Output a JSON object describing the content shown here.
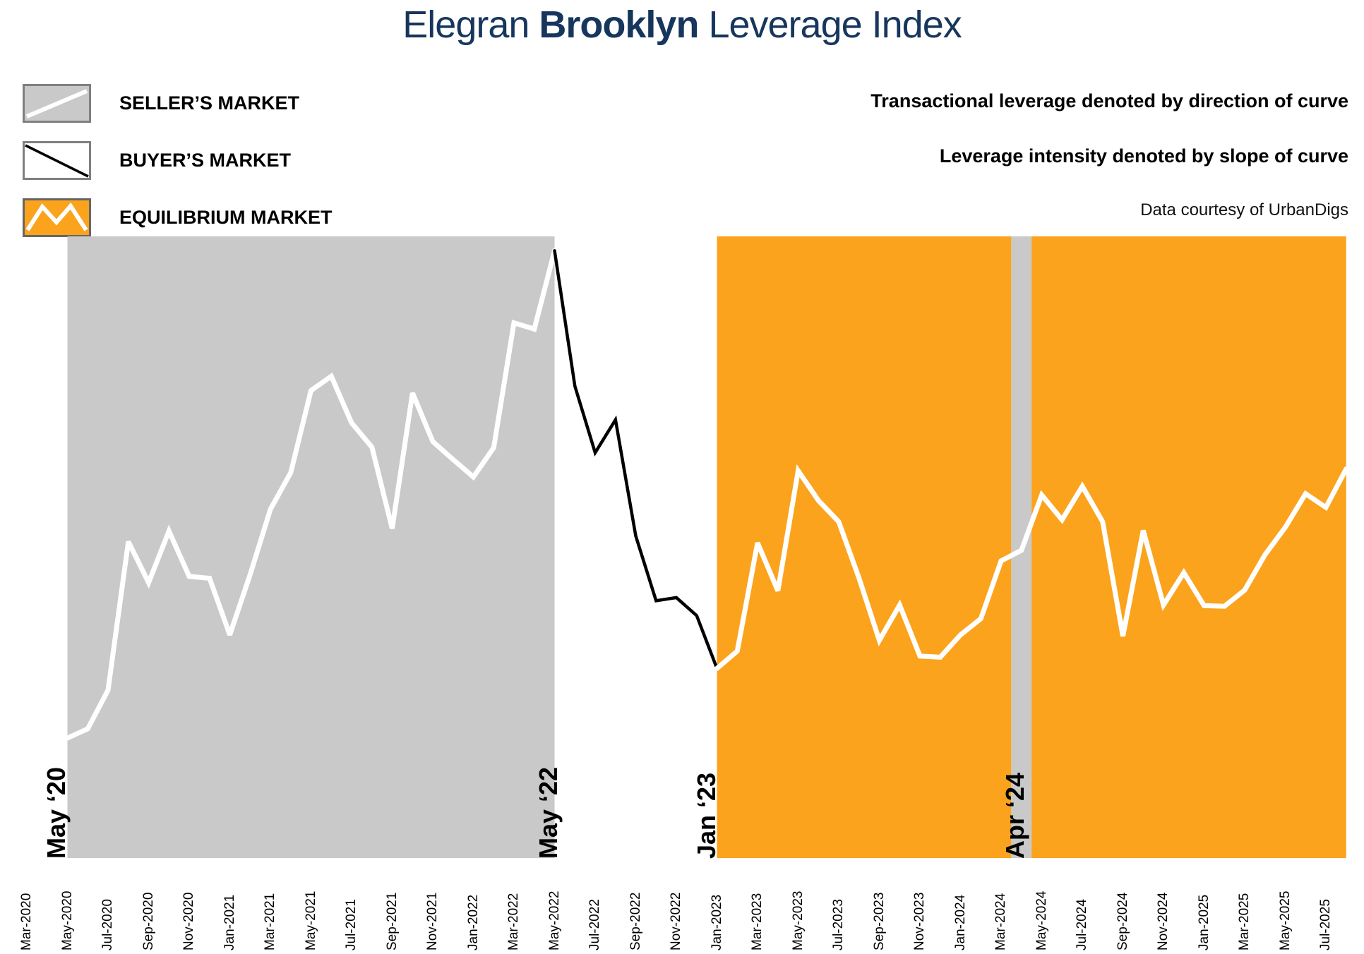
{
  "title": {
    "prefix": "Elegran ",
    "bold": "Brooklyn",
    "suffix": " Leverage Index"
  },
  "legend": {
    "items": [
      {
        "id": "sellers",
        "label": "SELLER’S MARKET"
      },
      {
        "id": "buyers",
        "label": "BUYER’S MARKET"
      },
      {
        "id": "equilibrium",
        "label": "EQUILIBRIUM MARKET"
      }
    ]
  },
  "notes": {
    "line1": "Transactional leverage denoted by direction of curve",
    "line2": "Leverage intensity denoted by slope of curve",
    "credit": "Data courtesy of UrbanDigs"
  },
  "colors": {
    "navy": "#17365D",
    "equilibrium_orange": "#FBA31C",
    "sellers_gray": "#C9C9C9",
    "swatch_border": "#7F7F7F",
    "line_white": "#FFFFFF",
    "line_black": "#000000"
  },
  "chart_data": {
    "type": "line",
    "title": "Elegran Brooklyn Leverage Index",
    "xlabel": "",
    "ylabel": "",
    "ylim": [
      0,
      100
    ],
    "grid": false,
    "x_unit": "month index from Mar-2020",
    "regions": [
      {
        "market": "sellers",
        "from": 2,
        "to": 26,
        "from_month": "May-2020",
        "to_month": "May-2022"
      },
      {
        "market": "buyers",
        "from": 26,
        "to": 34,
        "from_month": "May-2022",
        "to_month": "Jan-2023"
      },
      {
        "market": "equilibrium",
        "from": 34,
        "to": 48.5,
        "from_month": "Jan-2023",
        "to_month": "Mar-2024"
      },
      {
        "market": "sellers",
        "from": 48.5,
        "to": 49.5,
        "from_month": "Apr-2024",
        "to_month": "Apr-2024"
      },
      {
        "market": "equilibrium",
        "from": 49.5,
        "to": 65,
        "from_month": "May-2024",
        "to_month": "Aug-2025"
      }
    ],
    "line_segments": [
      {
        "stroke": "white",
        "width": 7,
        "from_i": 2,
        "to_i": 26
      },
      {
        "stroke": "black",
        "width": 4.5,
        "from_i": 26,
        "to_i": 34
      },
      {
        "stroke": "white",
        "width": 7,
        "from_i": 34,
        "to_i": 65
      }
    ],
    "annotations": [
      {
        "label": "May ‘20",
        "i": 2,
        "dx": -35
      },
      {
        "label": "May ‘22",
        "i": 26,
        "dx": -28
      },
      {
        "label": "Jan ‘23",
        "i": 34,
        "dx": -34
      },
      {
        "label": "Apr ‘24",
        "i": 48.5,
        "dx": -13
      }
    ],
    "axis_ticks": [
      {
        "i": 0,
        "label": "Mar-2020"
      },
      {
        "i": 2,
        "label": "May-2020"
      },
      {
        "i": 4,
        "label": "Jul-2020"
      },
      {
        "i": 6,
        "label": "Sep-2020"
      },
      {
        "i": 8,
        "label": "Nov-2020"
      },
      {
        "i": 10,
        "label": "Jan-2021"
      },
      {
        "i": 12,
        "label": "Mar-2021"
      },
      {
        "i": 14,
        "label": "May-2021"
      },
      {
        "i": 16,
        "label": "Jul-2021"
      },
      {
        "i": 18,
        "label": "Sep-2021"
      },
      {
        "i": 20,
        "label": "Nov-2021"
      },
      {
        "i": 22,
        "label": "Jan-2022"
      },
      {
        "i": 24,
        "label": "Mar-2022"
      },
      {
        "i": 26,
        "label": "May-2022"
      },
      {
        "i": 28,
        "label": "Jul-2022"
      },
      {
        "i": 30,
        "label": "Sep-2022"
      },
      {
        "i": 32,
        "label": "Nov-2022"
      },
      {
        "i": 34,
        "label": "Jan-2023"
      },
      {
        "i": 36,
        "label": "Mar-2023"
      },
      {
        "i": 38,
        "label": "May-2023"
      },
      {
        "i": 40,
        "label": "Jul-2023"
      },
      {
        "i": 42,
        "label": "Sep-2023"
      },
      {
        "i": 44,
        "label": "Nov-2023"
      },
      {
        "i": 46,
        "label": "Jan-2024"
      },
      {
        "i": 48,
        "label": "Mar-2024"
      },
      {
        "i": 50,
        "label": "May-2024"
      },
      {
        "i": 52,
        "label": "Jul-2024"
      },
      {
        "i": 54,
        "label": "Sep-2024"
      },
      {
        "i": 56,
        "label": "Nov-2024"
      },
      {
        "i": 58,
        "label": "Jan-2025"
      },
      {
        "i": 60,
        "label": "Mar-2025"
      },
      {
        "i": 62,
        "label": "May-2025"
      },
      {
        "i": 64,
        "label": "Jul-2025"
      }
    ],
    "series": [
      {
        "i": 2,
        "month": "May-2020",
        "value": 19.3
      },
      {
        "i": 3,
        "month": "Jun-2020",
        "value": 20.8
      },
      {
        "i": 4,
        "month": "Jul-2020",
        "value": 27.0
      },
      {
        "i": 5,
        "month": "Aug-2020",
        "value": 50.9
      },
      {
        "i": 6,
        "month": "Sep-2020",
        "value": 44.3
      },
      {
        "i": 7,
        "month": "Oct-2020",
        "value": 52.6
      },
      {
        "i": 8,
        "month": "Nov-2020",
        "value": 45.3
      },
      {
        "i": 9,
        "month": "Dec-2020",
        "value": 45.0
      },
      {
        "i": 10,
        "month": "Jan-2021",
        "value": 35.9
      },
      {
        "i": 11,
        "month": "Feb-2021",
        "value": 45.6
      },
      {
        "i": 12,
        "month": "Mar-2021",
        "value": 56.1
      },
      {
        "i": 13,
        "month": "Apr-2021",
        "value": 62.0
      },
      {
        "i": 14,
        "month": "May-2021",
        "value": 75.2
      },
      {
        "i": 15,
        "month": "Jun-2021",
        "value": 77.5
      },
      {
        "i": 16,
        "month": "Jul-2021",
        "value": 70.0
      },
      {
        "i": 17,
        "month": "Aug-2021",
        "value": 66.1
      },
      {
        "i": 18,
        "month": "Sep-2021",
        "value": 53.0
      },
      {
        "i": 19,
        "month": "Oct-2021",
        "value": 74.8
      },
      {
        "i": 20,
        "month": "Nov-2021",
        "value": 67.0
      },
      {
        "i": 21,
        "month": "Dec-2021",
        "value": 64.1
      },
      {
        "i": 22,
        "month": "Jan-2022",
        "value": 61.3
      },
      {
        "i": 23,
        "month": "Feb-2022",
        "value": 66.0
      },
      {
        "i": 24,
        "month": "Mar-2022",
        "value": 86.1
      },
      {
        "i": 25,
        "month": "Apr-2022",
        "value": 85.1
      },
      {
        "i": 26,
        "month": "May-2022",
        "value": 97.7
      },
      {
        "i": 27,
        "month": "Jun-2022",
        "value": 75.9
      },
      {
        "i": 28,
        "month": "Jul-2022",
        "value": 65.2
      },
      {
        "i": 29,
        "month": "Aug-2022",
        "value": 70.5
      },
      {
        "i": 30,
        "month": "Sep-2022",
        "value": 51.8
      },
      {
        "i": 31,
        "month": "Oct-2022",
        "value": 41.4
      },
      {
        "i": 32,
        "month": "Nov-2022",
        "value": 41.9
      },
      {
        "i": 33,
        "month": "Dec-2022",
        "value": 39.0
      },
      {
        "i": 34,
        "month": "Jan-2023",
        "value": 30.5
      },
      {
        "i": 35,
        "month": "Feb-2023",
        "value": 33.3
      },
      {
        "i": 36,
        "month": "Mar-2023",
        "value": 50.7
      },
      {
        "i": 37,
        "month": "Apr-2023",
        "value": 43.0
      },
      {
        "i": 38,
        "month": "May-2023",
        "value": 62.3
      },
      {
        "i": 39,
        "month": "Jun-2023",
        "value": 57.5
      },
      {
        "i": 40,
        "month": "Jul-2023",
        "value": 54.1
      },
      {
        "i": 41,
        "month": "Aug-2023",
        "value": 45.0
      },
      {
        "i": 42,
        "month": "Sep-2023",
        "value": 35.0
      },
      {
        "i": 43,
        "month": "Oct-2023",
        "value": 40.7
      },
      {
        "i": 44,
        "month": "Nov-2023",
        "value": 32.5
      },
      {
        "i": 45,
        "month": "Dec-2023",
        "value": 32.3
      },
      {
        "i": 46,
        "month": "Jan-2024",
        "value": 35.9
      },
      {
        "i": 47,
        "month": "Feb-2024",
        "value": 38.5
      },
      {
        "i": 48,
        "month": "Mar-2024",
        "value": 47.8
      },
      {
        "i": 49,
        "month": "Apr-2024",
        "value": 49.5
      },
      {
        "i": 50,
        "month": "May-2024",
        "value": 58.4
      },
      {
        "i": 51,
        "month": "Jun-2024",
        "value": 54.4
      },
      {
        "i": 52,
        "month": "Jul-2024",
        "value": 59.8
      },
      {
        "i": 53,
        "month": "Aug-2024",
        "value": 54.1
      },
      {
        "i": 54,
        "month": "Sep-2024",
        "value": 35.7
      },
      {
        "i": 55,
        "month": "Oct-2024",
        "value": 52.7
      },
      {
        "i": 56,
        "month": "Nov-2024",
        "value": 40.7
      },
      {
        "i": 57,
        "month": "Dec-2024",
        "value": 45.9
      },
      {
        "i": 58,
        "month": "Jan-2025",
        "value": 40.6
      },
      {
        "i": 59,
        "month": "Feb-2025",
        "value": 40.5
      },
      {
        "i": 60,
        "month": "Mar-2025",
        "value": 43.1
      },
      {
        "i": 61,
        "month": "Apr-2025",
        "value": 48.8
      },
      {
        "i": 62,
        "month": "May-2025",
        "value": 53.2
      },
      {
        "i": 63,
        "month": "Jun-2025",
        "value": 58.6
      },
      {
        "i": 64,
        "month": "Jul-2025",
        "value": 56.4
      },
      {
        "i": 65,
        "month": "Aug-2025",
        "value": 62.6
      }
    ]
  }
}
